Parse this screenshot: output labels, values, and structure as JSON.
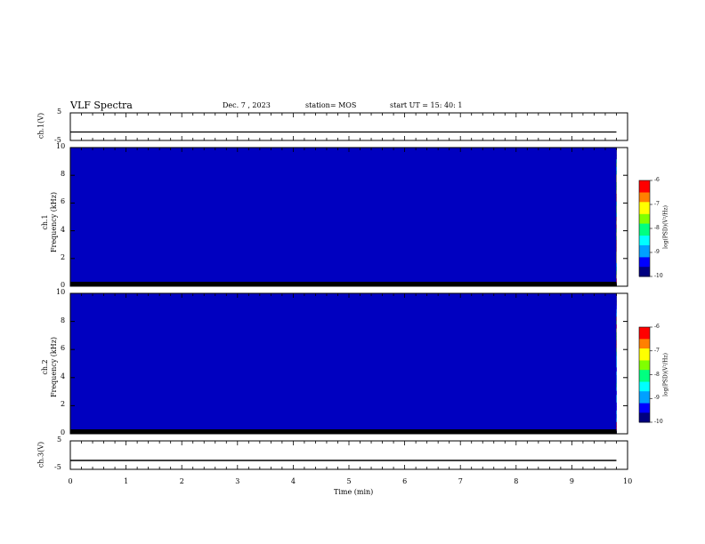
{
  "header": {
    "title": "VLF Spectra",
    "date": "Dec. 7 , 2023",
    "station": "station= MOS",
    "start": "start  UT =   15: 40: 1"
  },
  "chart_data": [
    {
      "type": "line",
      "ylabel": "ch.1(V)",
      "ylim": [
        -5,
        5
      ],
      "yticks": [
        "5",
        "-5"
      ],
      "x": [
        0,
        9.8
      ],
      "y": [
        0,
        0
      ]
    },
    {
      "type": "heatmap",
      "ylabel": "ch.1\nFrequency (kHz)",
      "ylabel_line1": "ch.1",
      "ylabel_line2": "Frequency (kHz)",
      "ylim": [
        0,
        10
      ],
      "yticks": [
        "0",
        "2",
        "4",
        "6",
        "8",
        "10"
      ],
      "xlim": [
        0,
        9.8
      ],
      "colorbar": {
        "label": "log(PSD)(V²/Hz)",
        "ticks": [
          "-6",
          "-7",
          "-8",
          "-9",
          "-10"
        ],
        "range": [
          -10,
          -6
        ]
      }
    },
    {
      "type": "heatmap",
      "ylabel": "ch.2\nFrequency (kHz)",
      "ylabel_line1": "ch.2",
      "ylabel_line2": "Frequency (kHz)",
      "ylim": [
        0,
        10
      ],
      "yticks": [
        "0",
        "2",
        "4",
        "6",
        "8",
        "10"
      ],
      "xlim": [
        0,
        9.8
      ],
      "colorbar": {
        "label": "log(PSD)(V²/Hz)",
        "ticks": [
          "-6",
          "-7",
          "-8",
          "-9",
          "-10"
        ],
        "range": [
          -10,
          -6
        ]
      }
    },
    {
      "type": "line",
      "ylabel": "ch.3(V)",
      "ylim": [
        -5,
        5
      ],
      "yticks": [
        "5",
        "-5"
      ],
      "x": [
        0,
        9.8
      ],
      "y": [
        0,
        0
      ]
    }
  ],
  "xaxis": {
    "label": "Time  (min)",
    "ticks": [
      "0",
      "1",
      "2",
      "3",
      "4",
      "5",
      "6",
      "7",
      "8",
      "9",
      "10"
    ],
    "xlim": [
      0,
      10
    ]
  },
  "colors": {
    "colormap": [
      "#000080",
      "#0000ff",
      "#00a0ff",
      "#00ffff",
      "#00ff80",
      "#80ff00",
      "#ffff00",
      "#ff8000",
      "#ff0000",
      "#ffffff"
    ]
  }
}
